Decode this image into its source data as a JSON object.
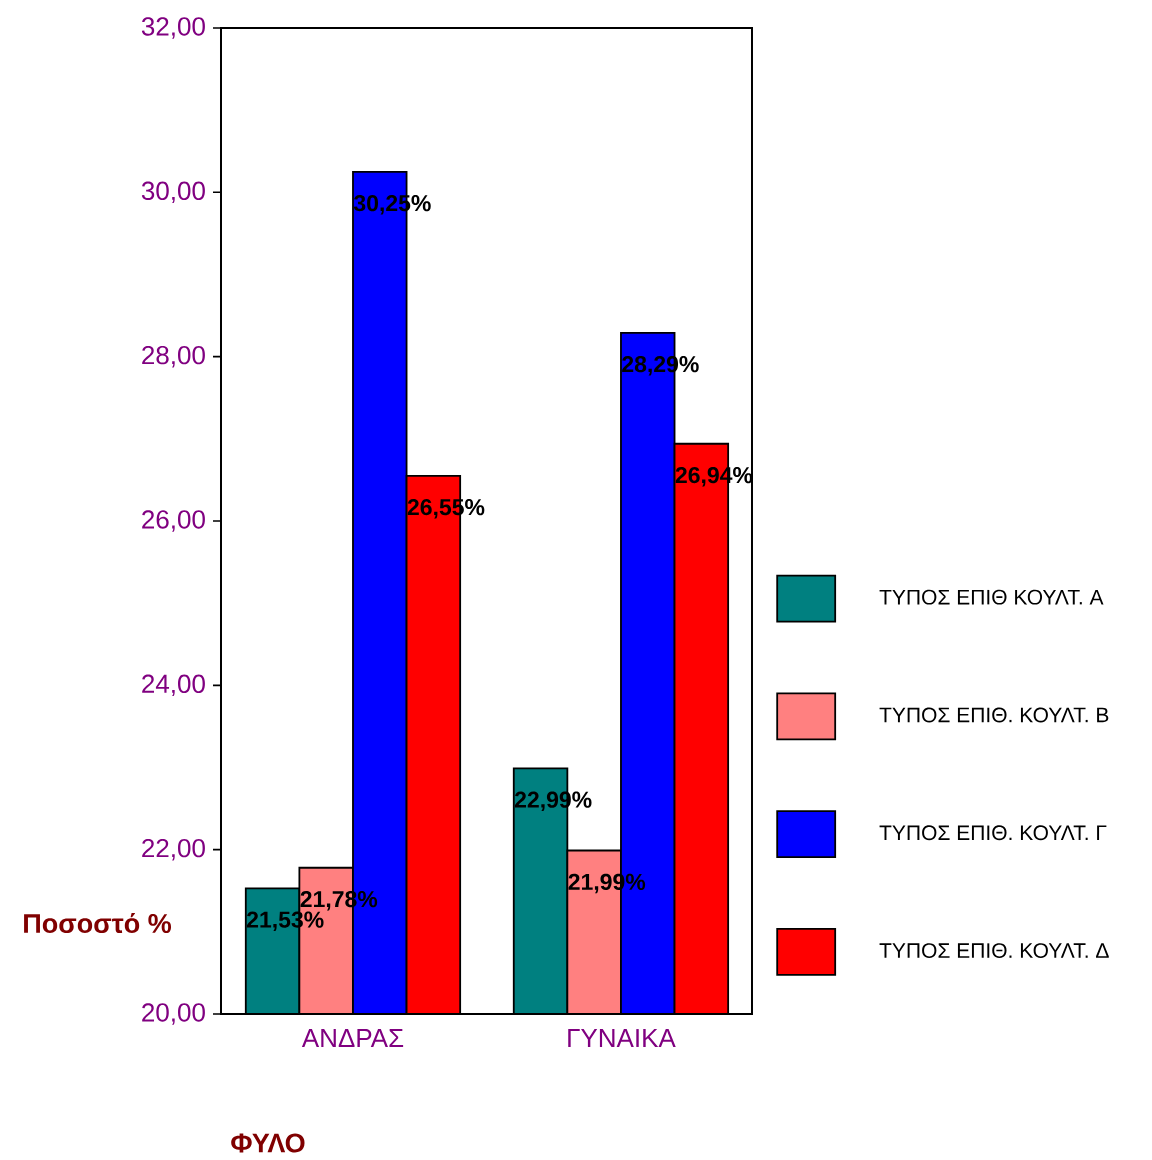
{
  "chart_data": {
    "type": "bar",
    "ylabel": "Ποσοστό %",
    "xlabel": "ΦΥΛΟ",
    "categories": [
      "ΑΝΔΡΑΣ",
      "ΓΥΝΑΙΚΑ"
    ],
    "ylim": [
      20,
      32
    ],
    "yticks": [
      {
        "value": 20,
        "label": "20,00"
      },
      {
        "value": 22,
        "label": "22,00"
      },
      {
        "value": 24,
        "label": "24,00"
      },
      {
        "value": 26,
        "label": "26,00"
      },
      {
        "value": 28,
        "label": "28,00"
      },
      {
        "value": 30,
        "label": "30,00"
      },
      {
        "value": 32,
        "label": "32,00"
      }
    ],
    "legend": "right",
    "series": [
      {
        "name": "ΤΥΠΟΣ ΕΠΙΘ ΚΟΥΛΤ. Α",
        "color": "#008080",
        "values": [
          21.53,
          22.99
        ],
        "value_labels": [
          "21,53%",
          "22,99%"
        ]
      },
      {
        "name": "ΤΥΠΟΣ ΕΠΙΘ. ΚΟΥΛΤ. Β",
        "color": "#ff8080",
        "values": [
          21.78,
          21.99
        ],
        "value_labels": [
          "21,78%",
          "21,99%"
        ]
      },
      {
        "name": "ΤΥΠΟΣ ΕΠΙΘ. ΚΟΥΛΤ. Γ",
        "color": "#0000ff",
        "values": [
          30.25,
          28.29
        ],
        "value_labels": [
          "30,25%",
          "28,29%"
        ]
      },
      {
        "name": "ΤΥΠΟΣ ΕΠΙΘ. ΚΟΥΛΤ. Δ",
        "color": "#ff0000",
        "values": [
          26.55,
          26.94
        ],
        "value_labels": [
          "26,55%",
          "26,94%"
        ]
      }
    ]
  }
}
